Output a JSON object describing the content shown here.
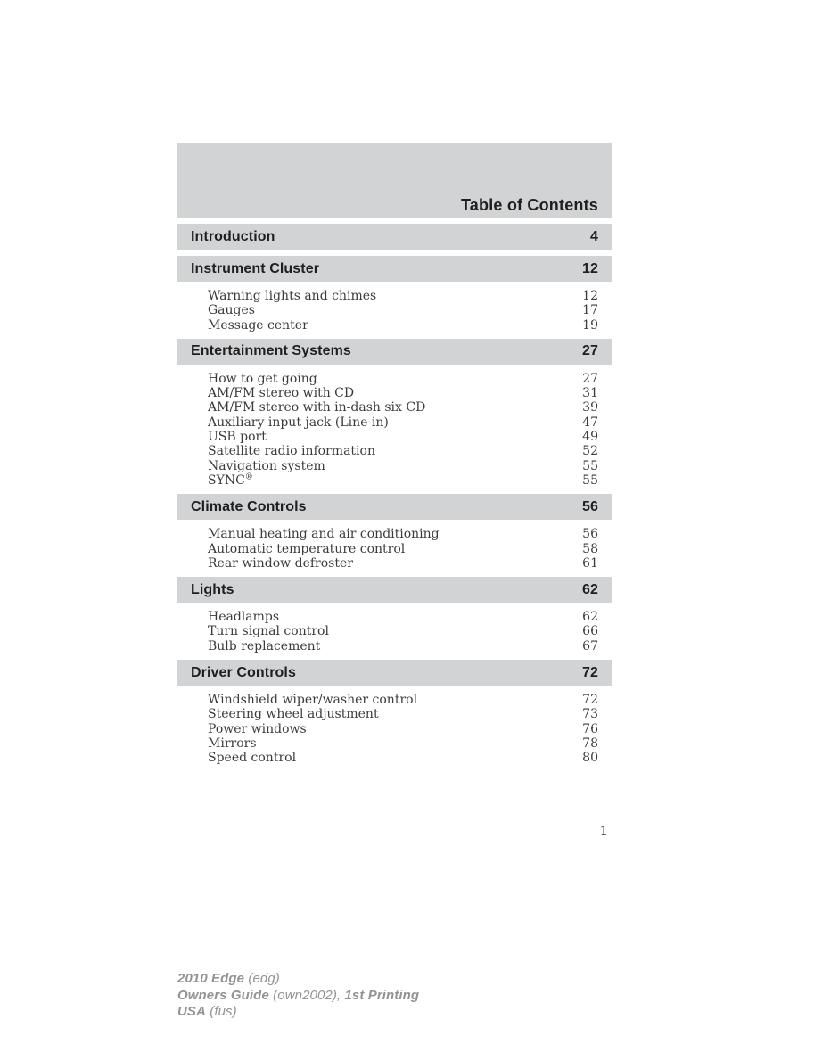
{
  "toc": {
    "title": "Table of Contents",
    "sections": [
      {
        "label": "Introduction",
        "page": "4",
        "items": []
      },
      {
        "label": "Instrument Cluster",
        "page": "12",
        "items": [
          {
            "label": "Warning lights and chimes",
            "page": "12"
          },
          {
            "label": "Gauges",
            "page": "17"
          },
          {
            "label": "Message center",
            "page": "19"
          }
        ]
      },
      {
        "label": "Entertainment Systems",
        "page": "27",
        "items": [
          {
            "label": "How to get going",
            "page": "27"
          },
          {
            "label": "AM/FM stereo with CD",
            "page": "31"
          },
          {
            "label": "AM/FM stereo with in-dash six CD",
            "page": "39"
          },
          {
            "label": "Auxiliary input jack (Line in)",
            "page": "47"
          },
          {
            "label": "USB port",
            "page": "49"
          },
          {
            "label": "Satellite radio information",
            "page": "52"
          },
          {
            "label": "Navigation system",
            "page": "55"
          },
          {
            "label": "SYNC®",
            "page": "55"
          }
        ]
      },
      {
        "label": "Climate Controls",
        "page": "56",
        "items": [
          {
            "label": "Manual heating and air conditioning",
            "page": "56"
          },
          {
            "label": "Automatic temperature control",
            "page": "58"
          },
          {
            "label": "Rear window defroster",
            "page": "61"
          }
        ]
      },
      {
        "label": "Lights",
        "page": "62",
        "items": [
          {
            "label": "Headlamps",
            "page": "62"
          },
          {
            "label": "Turn signal control",
            "page": "66"
          },
          {
            "label": "Bulb replacement",
            "page": "67"
          }
        ]
      },
      {
        "label": "Driver Controls",
        "page": "72",
        "items": [
          {
            "label": "Windshield wiper/washer control",
            "page": "72"
          },
          {
            "label": "Steering wheel adjustment",
            "page": "73"
          },
          {
            "label": "Power windows",
            "page": "76"
          },
          {
            "label": "Mirrors",
            "page": "78"
          },
          {
            "label": "Speed control",
            "page": "80"
          }
        ]
      }
    ]
  },
  "page_number": "1",
  "footer": {
    "lines": [
      {
        "segments": [
          {
            "text": "2010 Edge",
            "bold": true
          },
          {
            "text": " (edg)",
            "bold": false
          }
        ]
      },
      {
        "segments": [
          {
            "text": "Owners Guide",
            "bold": true
          },
          {
            "text": " (own2002),",
            "bold": false
          },
          {
            "text": " 1st Printing",
            "bold": true
          }
        ]
      },
      {
        "segments": [
          {
            "text": "USA",
            "bold": true
          },
          {
            "text": " (fus)",
            "bold": false
          }
        ]
      }
    ]
  },
  "colors": {
    "bar_background": "#d2d3d4",
    "heading_text": "#1f1f1f",
    "item_text": "#3b3b3b",
    "footer_text": "#919396"
  }
}
